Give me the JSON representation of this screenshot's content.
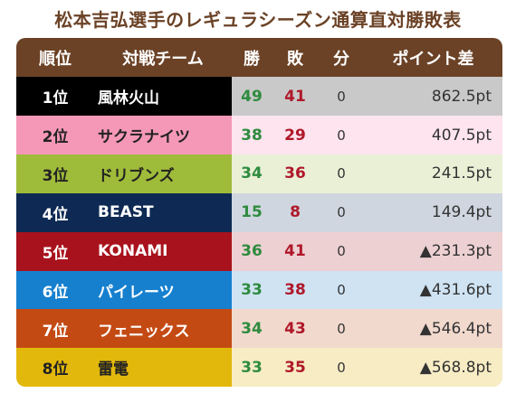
{
  "title": "松本吉弘選手のレギュラシーズン通算直対勝敗表",
  "header": {
    "rank": "順位",
    "team": "対戦チーム",
    "win": "勝",
    "loss": "敗",
    "draw": "分",
    "points": "ポイント差"
  },
  "rows": [
    {
      "rank": "1位",
      "team": "風林火山",
      "win": "49",
      "loss": "41",
      "draw": "0",
      "points": "862.5pt",
      "team_color": "#000000",
      "row_color": "#c9c9c9",
      "team_text": "#ffffff"
    },
    {
      "rank": "2位",
      "team": "サクラナイツ",
      "win": "38",
      "loss": "29",
      "draw": "0",
      "points": "407.5pt",
      "team_color": "#f598b8",
      "row_color": "#fde4ee",
      "team_text": "#222222"
    },
    {
      "rank": "3位",
      "team": "ドリブンズ",
      "win": "34",
      "loss": "36",
      "draw": "0",
      "points": "241.5pt",
      "team_color": "#9fbb3a",
      "row_color": "#e9f0d6",
      "team_text": "#222222"
    },
    {
      "rank": "4位",
      "team": "BEAST",
      "win": "15",
      "loss": "8",
      "draw": "0",
      "points": "149.4pt",
      "team_color": "#0e2a54",
      "row_color": "#cfd6df",
      "team_text": "#ffffff"
    },
    {
      "rank": "5位",
      "team": "KONAMI",
      "win": "36",
      "loss": "41",
      "draw": "0",
      "points": "▲231.3pt",
      "team_color": "#a8121c",
      "row_color": "#edd0d2",
      "team_text": "#ffffff"
    },
    {
      "rank": "6位",
      "team": "パイレーツ",
      "win": "33",
      "loss": "38",
      "draw": "0",
      "points": "▲431.6pt",
      "team_color": "#1680cf",
      "row_color": "#cfe3f3",
      "team_text": "#ffffff"
    },
    {
      "rank": "7位",
      "team": "フェニックス",
      "win": "34",
      "loss": "43",
      "draw": "0",
      "points": "▲546.4pt",
      "team_color": "#c44a14",
      "row_color": "#f1d9cd",
      "team_text": "#ffffff"
    },
    {
      "rank": "8位",
      "team": "雷電",
      "win": "33",
      "loss": "35",
      "draw": "0",
      "points": "▲568.8pt",
      "team_color": "#e2b80c",
      "row_color": "#f7ecc4",
      "team_text": "#222222"
    }
  ]
}
